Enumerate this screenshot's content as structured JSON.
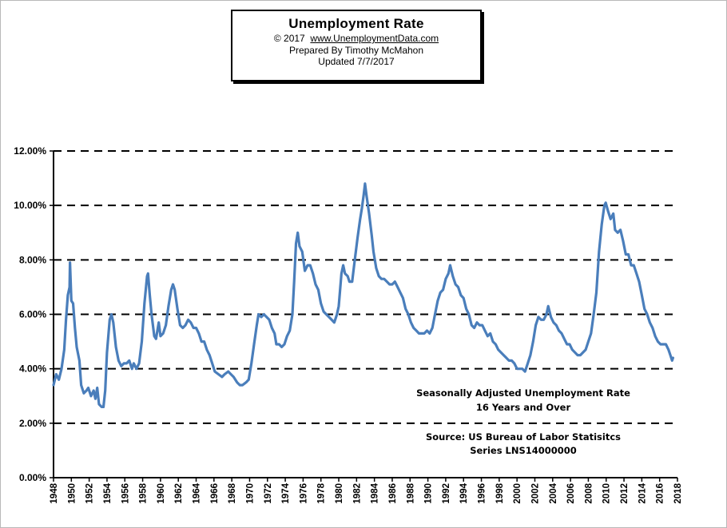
{
  "header": {
    "title": "Unemployment Rate",
    "copyright_prefix": "© 2017",
    "website": "www.UnemploymentData.com",
    "prepared_by": "Prepared  By Timothy McMahon",
    "updated": "Updated  7/7/2017"
  },
  "annotations": {
    "series_desc_line1": "Seasonally Adjusted Unemployment Rate",
    "series_desc_line2": "16 Years and Over",
    "source_line1": "Source:  US  Bureau of Labor Statisitcs",
    "source_line2": "Series LNS14000000"
  },
  "colors": {
    "line": "#4a7ebb",
    "grid": "#000000"
  },
  "chart_data": {
    "type": "line",
    "title": "Unemployment Rate",
    "xlabel": "",
    "ylabel": "",
    "xlim": [
      1948,
      2018
    ],
    "ylim": [
      0,
      12
    ],
    "grid": true,
    "grid_style": "dashed horizontal",
    "y_ticks": [
      "0.00%",
      "2.00%",
      "4.00%",
      "6.00%",
      "8.00%",
      "10.00%",
      "12.00%"
    ],
    "x_ticks": [
      "1948",
      "1950",
      "1952",
      "1954",
      "1956",
      "1958",
      "1960",
      "1962",
      "1964",
      "1966",
      "1968",
      "1970",
      "1972",
      "1974",
      "1976",
      "1978",
      "1980",
      "1982",
      "1984",
      "1986",
      "1988",
      "1990",
      "1992",
      "1994",
      "1996",
      "1998",
      "2000",
      "2002",
      "2004",
      "2006",
      "2008",
      "2010",
      "2012",
      "2014",
      "2016",
      "2018"
    ],
    "series": [
      {
        "values": [
          [
            1948.0,
            3.4
          ],
          [
            1948.3,
            3.8
          ],
          [
            1948.6,
            3.6
          ],
          [
            1948.9,
            4.0
          ],
          [
            1949.2,
            4.7
          ],
          [
            1949.4,
            5.8
          ],
          [
            1949.6,
            6.7
          ],
          [
            1949.8,
            7.0
          ],
          [
            1949.85,
            7.9
          ],
          [
            1950.0,
            6.5
          ],
          [
            1950.2,
            6.4
          ],
          [
            1950.4,
            5.5
          ],
          [
            1950.6,
            4.8
          ],
          [
            1950.9,
            4.3
          ],
          [
            1951.1,
            3.4
          ],
          [
            1951.4,
            3.1
          ],
          [
            1951.7,
            3.2
          ],
          [
            1951.9,
            3.3
          ],
          [
            1952.2,
            3.0
          ],
          [
            1952.5,
            3.2
          ],
          [
            1952.7,
            2.9
          ],
          [
            1952.9,
            3.3
          ],
          [
            1953.1,
            2.7
          ],
          [
            1953.4,
            2.6
          ],
          [
            1953.6,
            2.6
          ],
          [
            1953.8,
            3.2
          ],
          [
            1954.0,
            4.6
          ],
          [
            1954.3,
            5.8
          ],
          [
            1954.5,
            6.0
          ],
          [
            1954.7,
            5.7
          ],
          [
            1955.0,
            4.8
          ],
          [
            1955.3,
            4.3
          ],
          [
            1955.6,
            4.1
          ],
          [
            1955.9,
            4.2
          ],
          [
            1956.2,
            4.2
          ],
          [
            1956.5,
            4.3
          ],
          [
            1956.8,
            4.0
          ],
          [
            1957.0,
            4.2
          ],
          [
            1957.3,
            4.0
          ],
          [
            1957.6,
            4.2
          ],
          [
            1957.9,
            5.0
          ],
          [
            1958.2,
            6.4
          ],
          [
            1958.5,
            7.4
          ],
          [
            1958.6,
            7.5
          ],
          [
            1958.8,
            6.7
          ],
          [
            1959.0,
            6.0
          ],
          [
            1959.3,
            5.2
          ],
          [
            1959.5,
            5.1
          ],
          [
            1959.8,
            5.7
          ],
          [
            1960.0,
            5.2
          ],
          [
            1960.3,
            5.3
          ],
          [
            1960.6,
            5.6
          ],
          [
            1960.9,
            6.3
          ],
          [
            1961.2,
            6.9
          ],
          [
            1961.4,
            7.1
          ],
          [
            1961.6,
            6.9
          ],
          [
            1961.9,
            6.2
          ],
          [
            1962.2,
            5.6
          ],
          [
            1962.5,
            5.5
          ],
          [
            1962.8,
            5.6
          ],
          [
            1963.1,
            5.8
          ],
          [
            1963.4,
            5.7
          ],
          [
            1963.7,
            5.5
          ],
          [
            1964.0,
            5.5
          ],
          [
            1964.3,
            5.3
          ],
          [
            1964.6,
            5.0
          ],
          [
            1964.9,
            5.0
          ],
          [
            1965.2,
            4.7
          ],
          [
            1965.5,
            4.5
          ],
          [
            1965.8,
            4.2
          ],
          [
            1966.1,
            3.9
          ],
          [
            1966.5,
            3.8
          ],
          [
            1966.9,
            3.7
          ],
          [
            1967.2,
            3.8
          ],
          [
            1967.6,
            3.9
          ],
          [
            1967.9,
            3.8
          ],
          [
            1968.2,
            3.7
          ],
          [
            1968.6,
            3.5
          ],
          [
            1968.9,
            3.4
          ],
          [
            1969.2,
            3.4
          ],
          [
            1969.6,
            3.5
          ],
          [
            1969.9,
            3.6
          ],
          [
            1970.2,
            4.2
          ],
          [
            1970.5,
            4.9
          ],
          [
            1970.8,
            5.6
          ],
          [
            1971.0,
            6.0
          ],
          [
            1971.3,
            5.9
          ],
          [
            1971.6,
            6.0
          ],
          [
            1971.9,
            5.9
          ],
          [
            1972.2,
            5.8
          ],
          [
            1972.5,
            5.5
          ],
          [
            1972.8,
            5.3
          ],
          [
            1973.0,
            4.9
          ],
          [
            1973.3,
            4.9
          ],
          [
            1973.6,
            4.8
          ],
          [
            1973.9,
            4.9
          ],
          [
            1974.2,
            5.2
          ],
          [
            1974.5,
            5.4
          ],
          [
            1974.8,
            6.0
          ],
          [
            1975.0,
            7.2
          ],
          [
            1975.2,
            8.6
          ],
          [
            1975.4,
            9.0
          ],
          [
            1975.6,
            8.5
          ],
          [
            1975.9,
            8.3
          ],
          [
            1976.2,
            7.6
          ],
          [
            1976.5,
            7.8
          ],
          [
            1976.8,
            7.8
          ],
          [
            1977.1,
            7.5
          ],
          [
            1977.4,
            7.1
          ],
          [
            1977.7,
            6.9
          ],
          [
            1978.0,
            6.4
          ],
          [
            1978.3,
            6.1
          ],
          [
            1978.6,
            6.0
          ],
          [
            1978.9,
            5.9
          ],
          [
            1979.2,
            5.8
          ],
          [
            1979.5,
            5.7
          ],
          [
            1979.8,
            6.0
          ],
          [
            1980.0,
            6.3
          ],
          [
            1980.3,
            7.5
          ],
          [
            1980.5,
            7.8
          ],
          [
            1980.7,
            7.5
          ],
          [
            1981.0,
            7.4
          ],
          [
            1981.2,
            7.2
          ],
          [
            1981.5,
            7.2
          ],
          [
            1981.8,
            8.0
          ],
          [
            1982.1,
            8.8
          ],
          [
            1982.4,
            9.5
          ],
          [
            1982.6,
            9.9
          ],
          [
            1982.8,
            10.4
          ],
          [
            1982.95,
            10.8
          ],
          [
            1983.1,
            10.4
          ],
          [
            1983.4,
            9.7
          ],
          [
            1983.7,
            8.9
          ],
          [
            1983.9,
            8.3
          ],
          [
            1984.2,
            7.7
          ],
          [
            1984.5,
            7.4
          ],
          [
            1984.8,
            7.3
          ],
          [
            1985.1,
            7.3
          ],
          [
            1985.4,
            7.2
          ],
          [
            1985.7,
            7.1
          ],
          [
            1986.0,
            7.1
          ],
          [
            1986.3,
            7.2
          ],
          [
            1986.6,
            7.0
          ],
          [
            1986.9,
            6.8
          ],
          [
            1987.2,
            6.6
          ],
          [
            1987.5,
            6.2
          ],
          [
            1987.8,
            6.0
          ],
          [
            1988.1,
            5.7
          ],
          [
            1988.4,
            5.5
          ],
          [
            1988.7,
            5.4
          ],
          [
            1989.0,
            5.3
          ],
          [
            1989.3,
            5.3
          ],
          [
            1989.6,
            5.3
          ],
          [
            1989.9,
            5.4
          ],
          [
            1990.2,
            5.3
          ],
          [
            1990.5,
            5.5
          ],
          [
            1990.8,
            6.0
          ],
          [
            1991.1,
            6.5
          ],
          [
            1991.4,
            6.8
          ],
          [
            1991.7,
            6.9
          ],
          [
            1992.0,
            7.3
          ],
          [
            1992.3,
            7.5
          ],
          [
            1992.5,
            7.8
          ],
          [
            1992.8,
            7.4
          ],
          [
            1993.1,
            7.1
          ],
          [
            1993.4,
            7.0
          ],
          [
            1993.7,
            6.7
          ],
          [
            1994.0,
            6.6
          ],
          [
            1994.3,
            6.2
          ],
          [
            1994.6,
            6.0
          ],
          [
            1994.9,
            5.6
          ],
          [
            1995.2,
            5.5
          ],
          [
            1995.5,
            5.7
          ],
          [
            1995.8,
            5.6
          ],
          [
            1996.1,
            5.6
          ],
          [
            1996.4,
            5.4
          ],
          [
            1996.7,
            5.2
          ],
          [
            1997.0,
            5.3
          ],
          [
            1997.3,
            5.0
          ],
          [
            1997.6,
            4.9
          ],
          [
            1997.9,
            4.7
          ],
          [
            1998.2,
            4.6
          ],
          [
            1998.5,
            4.5
          ],
          [
            1998.8,
            4.4
          ],
          [
            1999.1,
            4.3
          ],
          [
            1999.4,
            4.3
          ],
          [
            1999.7,
            4.2
          ],
          [
            2000.0,
            4.0
          ],
          [
            2000.3,
            4.0
          ],
          [
            2000.6,
            4.0
          ],
          [
            2000.9,
            3.9
          ],
          [
            2001.2,
            4.2
          ],
          [
            2001.5,
            4.5
          ],
          [
            2001.8,
            5.0
          ],
          [
            2002.1,
            5.6
          ],
          [
            2002.4,
            5.9
          ],
          [
            2002.7,
            5.8
          ],
          [
            2003.0,
            5.8
          ],
          [
            2003.3,
            6.0
          ],
          [
            2003.5,
            6.3
          ],
          [
            2003.8,
            5.9
          ],
          [
            2004.1,
            5.7
          ],
          [
            2004.4,
            5.6
          ],
          [
            2004.7,
            5.4
          ],
          [
            2005.0,
            5.3
          ],
          [
            2005.3,
            5.1
          ],
          [
            2005.6,
            4.9
          ],
          [
            2005.9,
            4.9
          ],
          [
            2006.2,
            4.7
          ],
          [
            2006.5,
            4.6
          ],
          [
            2006.8,
            4.5
          ],
          [
            2007.1,
            4.5
          ],
          [
            2007.4,
            4.6
          ],
          [
            2007.7,
            4.7
          ],
          [
            2008.0,
            5.0
          ],
          [
            2008.3,
            5.3
          ],
          [
            2008.6,
            6.0
          ],
          [
            2008.9,
            6.8
          ],
          [
            2009.2,
            8.3
          ],
          [
            2009.5,
            9.3
          ],
          [
            2009.8,
            10.0
          ],
          [
            2009.95,
            10.1
          ],
          [
            2010.2,
            9.8
          ],
          [
            2010.5,
            9.5
          ],
          [
            2010.8,
            9.7
          ],
          [
            2011.0,
            9.1
          ],
          [
            2011.3,
            9.0
          ],
          [
            2011.6,
            9.1
          ],
          [
            2011.9,
            8.7
          ],
          [
            2012.2,
            8.2
          ],
          [
            2012.5,
            8.2
          ],
          [
            2012.8,
            7.8
          ],
          [
            2013.1,
            7.8
          ],
          [
            2013.4,
            7.5
          ],
          [
            2013.7,
            7.2
          ],
          [
            2014.0,
            6.7
          ],
          [
            2014.3,
            6.2
          ],
          [
            2014.6,
            6.0
          ],
          [
            2014.9,
            5.7
          ],
          [
            2015.2,
            5.5
          ],
          [
            2015.5,
            5.2
          ],
          [
            2015.8,
            5.0
          ],
          [
            2016.1,
            4.9
          ],
          [
            2016.4,
            4.9
          ],
          [
            2016.7,
            4.9
          ],
          [
            2017.0,
            4.7
          ],
          [
            2017.2,
            4.5
          ],
          [
            2017.4,
            4.3
          ],
          [
            2017.5,
            4.4
          ]
        ]
      }
    ]
  }
}
